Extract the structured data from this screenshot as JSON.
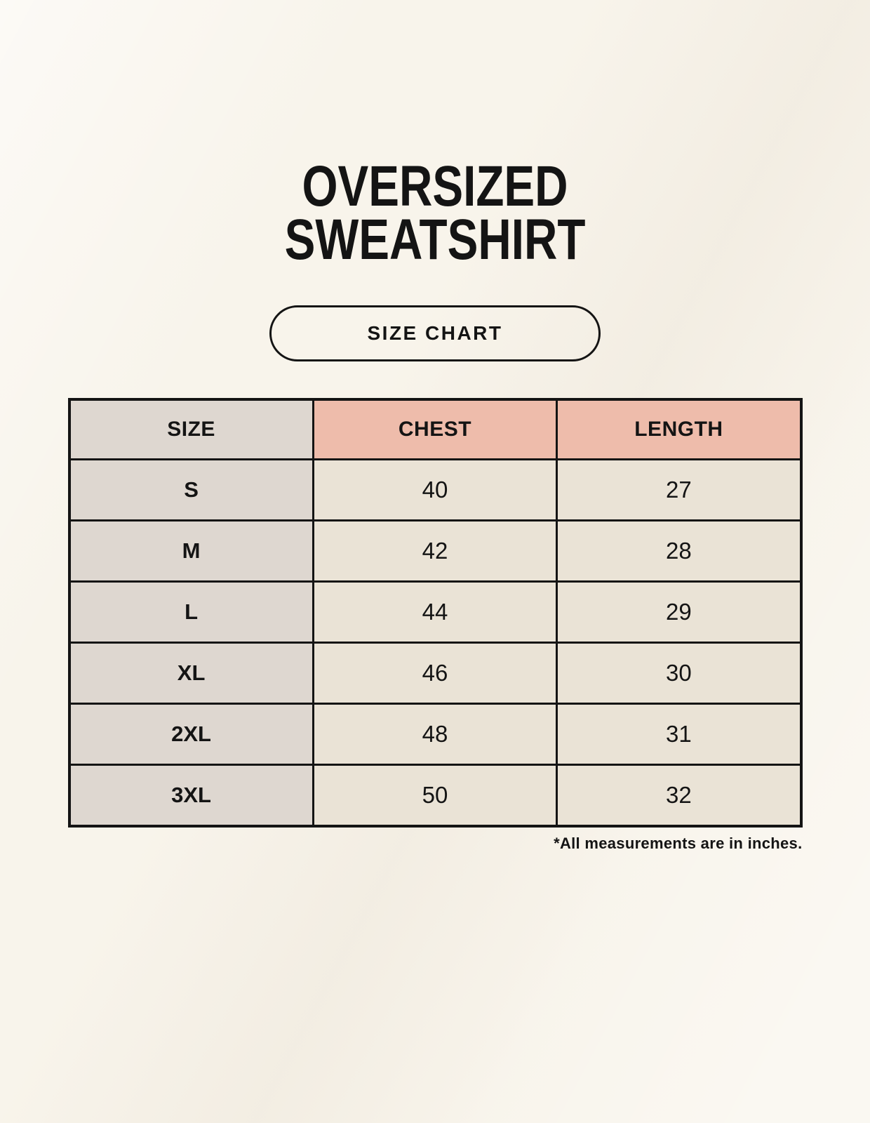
{
  "title": {
    "line1": "OVERSIZED",
    "line2": "SWEATSHIRT"
  },
  "badge": {
    "label": "SIZE CHART"
  },
  "footnote": "*All measurements are in inches.",
  "chart_data": {
    "type": "table",
    "title": "Oversized Sweatshirt Size Chart",
    "columns": [
      "SIZE",
      "CHEST",
      "LENGTH"
    ],
    "rows": [
      [
        "S",
        "40",
        "27"
      ],
      [
        "M",
        "42",
        "28"
      ],
      [
        "L",
        "44",
        "29"
      ],
      [
        "XL",
        "46",
        "30"
      ],
      [
        "2XL",
        "48",
        "31"
      ],
      [
        "3XL",
        "50",
        "32"
      ]
    ],
    "units": "inches"
  },
  "colors": {
    "background": "#f8f4eb",
    "size_column": "#ded7d0",
    "header_accent": "#eebcab",
    "cell": "#eae3d6",
    "border": "#141414",
    "text": "#141414"
  }
}
